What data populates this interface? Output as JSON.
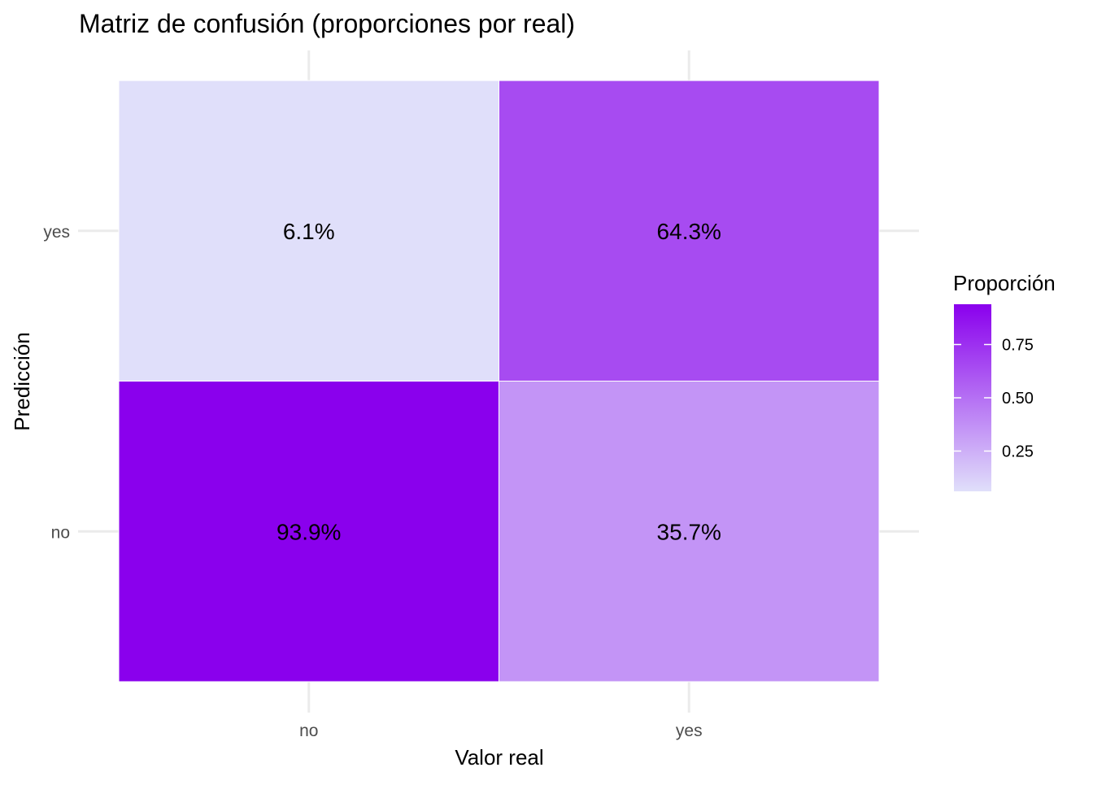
{
  "chart_data": {
    "type": "heatmap",
    "title": "Matriz de confusión (proporciones por real)",
    "xlabel": "Valor real",
    "ylabel": "Predicción",
    "x_categories": [
      "no",
      "yes"
    ],
    "y_categories": [
      "no",
      "yes"
    ],
    "cells": [
      {
        "x": "no",
        "y": "yes",
        "value": 0.061,
        "label": "6.1%"
      },
      {
        "x": "yes",
        "y": "yes",
        "value": 0.643,
        "label": "64.3%"
      },
      {
        "x": "no",
        "y": "no",
        "value": 0.939,
        "label": "93.9%"
      },
      {
        "x": "yes",
        "y": "no",
        "value": 0.357,
        "label": "35.7%"
      }
    ],
    "legend": {
      "title": "Proporción",
      "ticks": [
        0.25,
        0.5,
        0.75
      ],
      "tick_labels": [
        "0.25",
        "0.50",
        "0.75"
      ],
      "range": [
        0.061,
        0.939
      ],
      "low_color": "#e0dffa",
      "high_color": "#8a00ed",
      "placement": "right"
    },
    "grid": true
  }
}
